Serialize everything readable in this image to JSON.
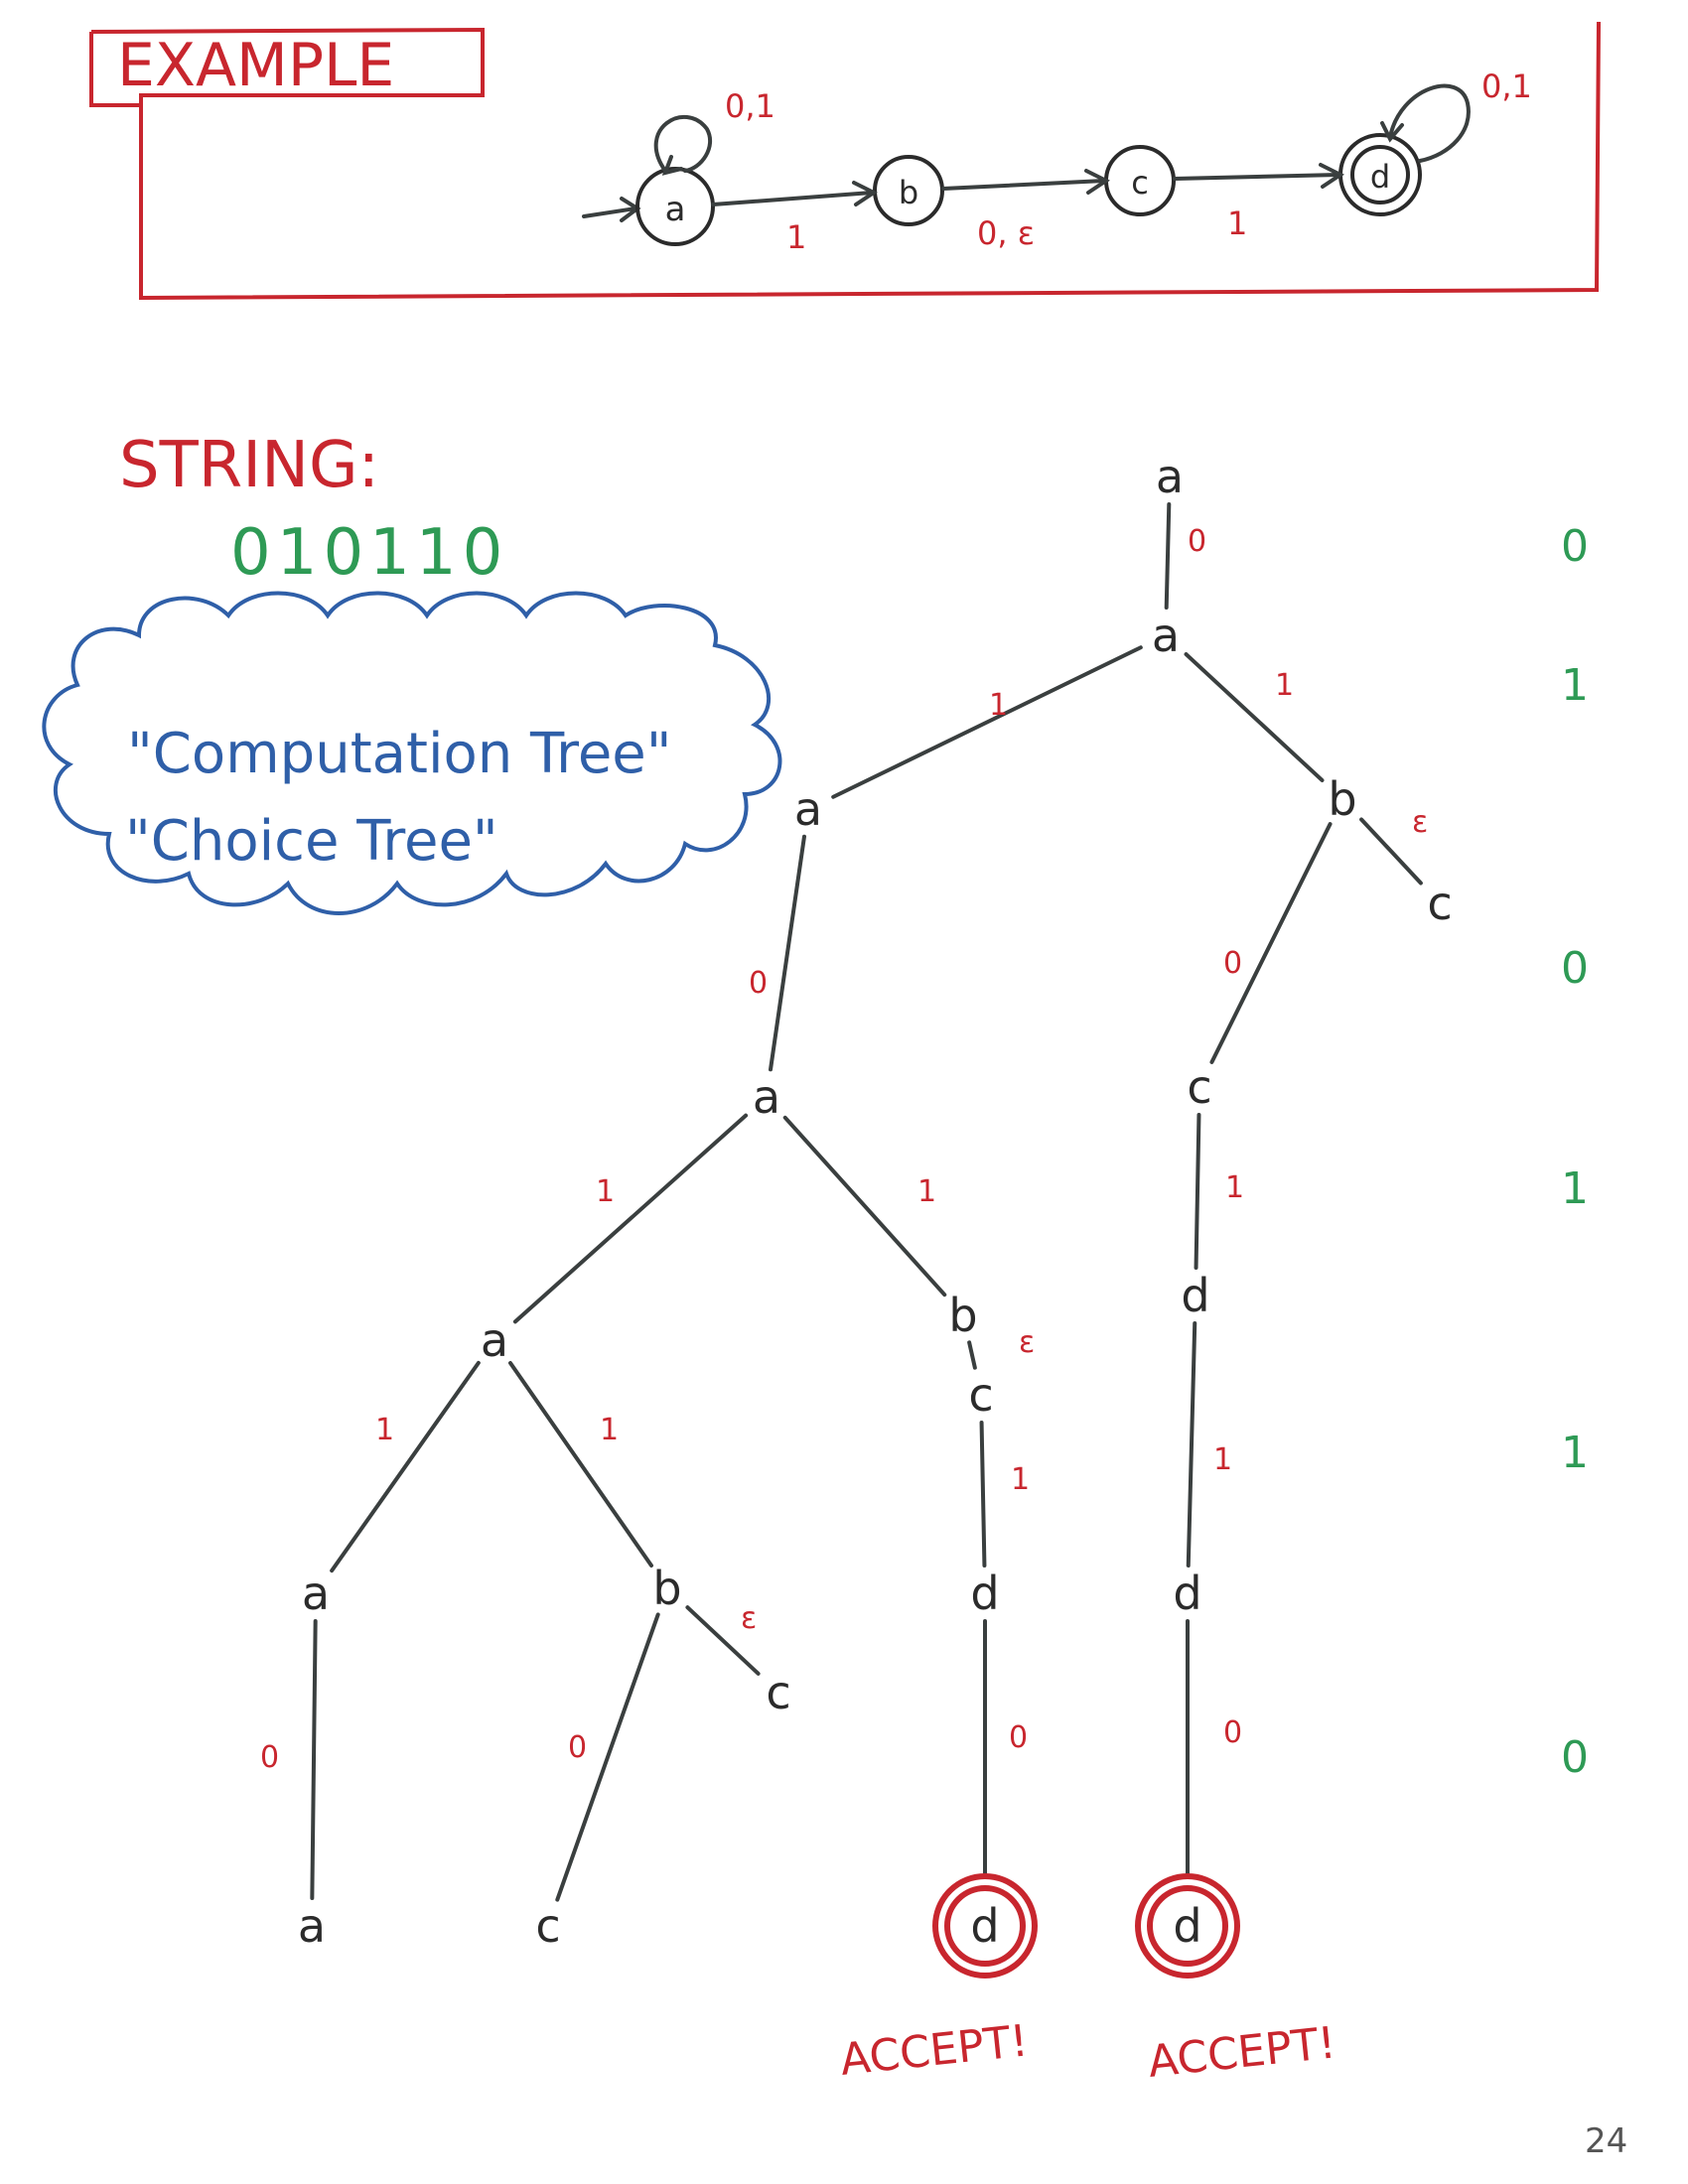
{
  "example": {
    "heading": "EXAMPLE",
    "nfa": {
      "states": [
        "a",
        "b",
        "c",
        "d"
      ],
      "transitions": [
        {
          "from": "a",
          "to": "a",
          "label": "0,1"
        },
        {
          "from": "a",
          "to": "b",
          "label": "1"
        },
        {
          "from": "b",
          "to": "c",
          "label": "0, ε"
        },
        {
          "from": "c",
          "to": "d",
          "label": "1"
        },
        {
          "from": "d",
          "to": "d",
          "label": "0,1"
        }
      ],
      "start": "a",
      "accept": [
        "d"
      ]
    }
  },
  "string": {
    "label": "STRING:",
    "value": "010110",
    "bits": [
      "0",
      "1",
      "0",
      "1",
      "1",
      "0"
    ]
  },
  "cloud": {
    "line1": "\"Computation Tree\"",
    "line2": "\"Choice Tree\""
  },
  "tree": {
    "nodes": [
      {
        "id": "n0",
        "label": "a"
      },
      {
        "id": "n1",
        "label": "a"
      },
      {
        "id": "n2",
        "label": "a"
      },
      {
        "id": "n3",
        "label": "b"
      },
      {
        "id": "n4",
        "label": "c"
      },
      {
        "id": "n5",
        "label": "a"
      },
      {
        "id": "n6",
        "label": "c"
      },
      {
        "id": "n7",
        "label": "a"
      },
      {
        "id": "n8",
        "label": "b"
      },
      {
        "id": "n9",
        "label": "c"
      },
      {
        "id": "n10",
        "label": "d"
      },
      {
        "id": "n11",
        "label": "a"
      },
      {
        "id": "n12",
        "label": "b"
      },
      {
        "id": "n13",
        "label": "c"
      },
      {
        "id": "n14",
        "label": "d"
      },
      {
        "id": "n15",
        "label": "d"
      },
      {
        "id": "n16",
        "label": "a"
      },
      {
        "id": "n17",
        "label": "c"
      },
      {
        "id": "n18",
        "label": "d"
      },
      {
        "id": "n19",
        "label": "d"
      }
    ],
    "edges": [
      {
        "from": "n0",
        "to": "n1",
        "label": "0"
      },
      {
        "from": "n1",
        "to": "n2",
        "label": "1"
      },
      {
        "from": "n1",
        "to": "n3",
        "label": "1"
      },
      {
        "from": "n3",
        "to": "n4",
        "label": "ε"
      },
      {
        "from": "n2",
        "to": "n5",
        "label": "0"
      },
      {
        "from": "n3",
        "to": "n6",
        "label": "0"
      },
      {
        "from": "n5",
        "to": "n7",
        "label": "1"
      },
      {
        "from": "n5",
        "to": "n8",
        "label": "1"
      },
      {
        "from": "n8",
        "to": "n9",
        "label": "ε"
      },
      {
        "from": "n6",
        "to": "n10",
        "label": "1"
      },
      {
        "from": "n7",
        "to": "n11",
        "label": "1"
      },
      {
        "from": "n7",
        "to": "n12",
        "label": "1"
      },
      {
        "from": "n12",
        "to": "n13",
        "label": "ε"
      },
      {
        "from": "n9",
        "to": "n14",
        "label": "1"
      },
      {
        "from": "n10",
        "to": "n15",
        "label": "1"
      },
      {
        "from": "n11",
        "to": "n16",
        "label": "0"
      },
      {
        "from": "n12",
        "to": "n17",
        "label": "0"
      },
      {
        "from": "n14",
        "to": "n18",
        "label": "0"
      },
      {
        "from": "n15",
        "to": "n19",
        "label": "0"
      }
    ],
    "accept_text": "ACCEPT!"
  },
  "page_number": "24",
  "colors": {
    "red": "#c8262e",
    "green": "#2e9a55",
    "blue": "#2f5fa8",
    "ink": "#2b2b2b"
  }
}
